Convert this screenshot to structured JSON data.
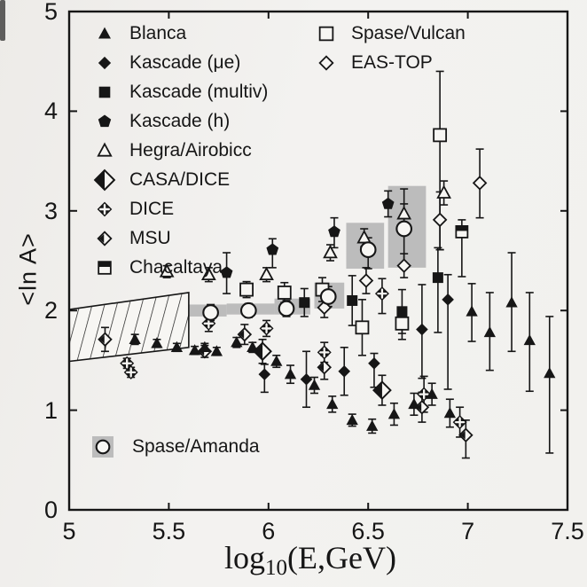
{
  "figure": {
    "ylabel": "<ln A>",
    "xlabel": {
      "prefix": "log",
      "sub": "10",
      "rest": "(E,GeV)"
    },
    "colors": {
      "ink": "#161616",
      "paper": "#f2f1ee",
      "band": "#bcbcbc",
      "face": "#f7f6f3"
    }
  },
  "axes": {
    "xlim": [
      5,
      7.5
    ],
    "ylim": [
      0,
      5
    ],
    "xticks": [
      {
        "v": 5,
        "label": "5"
      },
      {
        "v": 5.5,
        "label": "5.5"
      },
      {
        "v": 6,
        "label": "6"
      },
      {
        "v": 6.5,
        "label": "6.5"
      },
      {
        "v": 7,
        "label": "7"
      },
      {
        "v": 7.5,
        "label": "7.5"
      }
    ],
    "yticks": [
      {
        "v": 0,
        "label": "0"
      },
      {
        "v": 1,
        "label": "1"
      },
      {
        "v": 2,
        "label": "2"
      },
      {
        "v": 3,
        "label": "3"
      },
      {
        "v": 4,
        "label": "4"
      },
      {
        "v": 5,
        "label": "5"
      }
    ]
  },
  "legend": {
    "column1": [
      {
        "marker": "tri_f",
        "label": "Blanca"
      },
      {
        "marker": "dia_f",
        "label": "Kascade (μe)"
      },
      {
        "marker": "sq_f",
        "label": "Kascade (multiv)"
      },
      {
        "marker": "pent_f",
        "label": "Kascade (h)"
      },
      {
        "marker": "tri_o",
        "label": "Hegra/Airobicc"
      },
      {
        "marker": "dia_casa",
        "label": "CASA/DICE"
      },
      {
        "marker": "dia_dice",
        "label": "DICE"
      },
      {
        "marker": "dia_msu",
        "label": "MSU"
      },
      {
        "marker": "sq_half",
        "label": "Chacaltaya"
      }
    ],
    "column2": [
      {
        "marker": "sq_o",
        "label": "Spase/Vulcan"
      },
      {
        "marker": "dia_o",
        "label": "EAS-TOP"
      }
    ],
    "amanda": {
      "marker": "circ_o",
      "label": "Spase/Amanda"
    }
  },
  "chart_data": {
    "type": "scatter",
    "title": "",
    "xlabel": "log10(E,GeV)",
    "ylabel": "<ln A>",
    "xlim": [
      5,
      7.5
    ],
    "ylim": [
      0,
      5
    ],
    "note_points_format": "[x, y, err_down, err_up]",
    "series": [
      {
        "name": "CASA/DICE",
        "marker": "dia_casa",
        "points": [
          [
            5.97,
            1.59,
            0.12,
            0.12
          ],
          [
            6.57,
            1.2,
            0.15,
            0.15
          ]
        ]
      },
      {
        "name": "Spase/Vulcan",
        "marker": "sq_o",
        "points": [
          [
            5.89,
            2.21,
            0.08,
            0.08
          ],
          [
            6.08,
            2.18,
            0.1,
            0.1
          ],
          [
            6.27,
            2.21,
            0.12,
            0.12
          ],
          [
            6.47,
            1.83,
            0.28,
            0.28
          ],
          [
            6.67,
            1.87,
            0.16,
            0.16
          ],
          [
            6.86,
            3.76,
            1.15,
            0.64
          ]
        ]
      },
      {
        "name": "EAS-TOP",
        "marker": "dia_o",
        "points": [
          [
            6.28,
            2.03,
            0.1,
            0.1
          ],
          [
            6.49,
            2.3,
            0.13,
            0.13
          ],
          [
            6.68,
            2.45,
            0.12,
            0.12
          ],
          [
            6.86,
            2.91,
            0.3,
            0.28
          ],
          [
            7.06,
            3.28,
            0.35,
            0.34
          ]
        ]
      },
      {
        "name": "Chacaltaya",
        "marker": "sq_half",
        "points": [
          [
            6.97,
            2.79,
            0.45,
            0.12
          ]
        ]
      },
      {
        "name": "Kascade (multiv)",
        "marker": "sq_f",
        "points": [
          [
            6.18,
            2.08,
            0.14,
            0.14
          ],
          [
            6.42,
            2.1,
            0.25,
            0.25
          ],
          [
            6.67,
            1.99,
            0.22,
            0.22
          ],
          [
            6.85,
            2.33,
            0.55,
            0.3
          ]
        ]
      },
      {
        "name": "Kascade (h)",
        "marker": "pent_f",
        "points": [
          [
            5.79,
            2.38,
            0.21,
            0.2
          ],
          [
            6.02,
            2.61,
            0.18,
            0.11
          ],
          [
            6.33,
            2.79,
            0.16,
            0.14
          ],
          [
            6.6,
            3.07,
            0.13,
            0.13
          ]
        ]
      },
      {
        "name": "Hegra/Airobicc",
        "marker": "tri_o",
        "points": [
          [
            5.49,
            2.39,
            0.06,
            0.06
          ],
          [
            5.7,
            2.36,
            0.07,
            0.07
          ],
          [
            5.99,
            2.36,
            0.07,
            0.07
          ],
          [
            6.31,
            2.58,
            0.08,
            0.08
          ],
          [
            6.48,
            2.73,
            0.09,
            0.09
          ],
          [
            6.68,
            2.97,
            0.1,
            0.1
          ],
          [
            6.88,
            3.18,
            0.12,
            0.12
          ]
        ]
      },
      {
        "name": "DICE",
        "marker": "dia_dice",
        "points": [
          [
            5.29,
            1.47,
            0.05,
            0.05
          ],
          [
            5.31,
            1.38,
            0.05,
            0.05
          ],
          [
            5.7,
            1.87,
            0.08,
            0.08
          ],
          [
            5.99,
            1.82,
            0.08,
            0.08
          ],
          [
            6.28,
            1.58,
            0.1,
            0.1
          ],
          [
            6.57,
            2.17,
            0.2,
            0.15
          ],
          [
            6.78,
            1.16,
            0.18,
            0.18
          ],
          [
            6.96,
            0.88,
            0.15,
            0.15
          ]
        ]
      },
      {
        "name": "MSU",
        "marker": "dia_msu",
        "points": [
          [
            5.18,
            1.71,
            0.12,
            0.12
          ],
          [
            5.68,
            1.59,
            0.06,
            0.06
          ],
          [
            5.88,
            1.76,
            0.1,
            0.1
          ],
          [
            6.28,
            1.43,
            0.12,
            0.12
          ],
          [
            6.77,
            1.03,
            0.15,
            0.15
          ],
          [
            6.99,
            0.75,
            0.23,
            0.15
          ]
        ]
      },
      {
        "name": "Spase/Amanda",
        "marker": "circ_o",
        "points": [
          [
            5.71,
            1.98,
            0.08,
            0.08
          ],
          [
            5.9,
            2.0,
            0.07,
            0.07
          ],
          [
            6.09,
            2.02,
            0.08,
            0.08
          ],
          [
            6.3,
            2.14,
            0.1,
            0.1
          ],
          [
            6.5,
            2.61,
            0.19,
            0.12
          ],
          [
            6.68,
            2.82,
            0.38,
            0.4
          ]
        ]
      },
      {
        "name": "Kascade (μe)",
        "marker": "dia_f",
        "points": [
          [
            5.98,
            1.36,
            0.18,
            0.1
          ],
          [
            6.19,
            1.31,
            0.28,
            0.28
          ],
          [
            6.38,
            1.39,
            0.24,
            0.24
          ],
          [
            6.53,
            1.47,
            0.24,
            0.1
          ],
          [
            6.77,
            1.81,
            0.49,
            0.45
          ],
          [
            6.9,
            2.11,
            0.9,
            0.25
          ]
        ]
      },
      {
        "name": "Blanca",
        "marker": "tri_f",
        "points": [
          [
            5.33,
            1.71,
            0.05,
            0.05
          ],
          [
            5.44,
            1.67,
            0.04,
            0.04
          ],
          [
            5.54,
            1.63,
            0.04,
            0.04
          ],
          [
            5.63,
            1.6,
            0.04,
            0.04
          ],
          [
            5.68,
            1.63,
            0.04,
            0.04
          ],
          [
            5.74,
            1.59,
            0.04,
            0.04
          ],
          [
            5.84,
            1.68,
            0.05,
            0.05
          ],
          [
            5.92,
            1.63,
            0.05,
            0.05
          ],
          [
            6.04,
            1.49,
            0.06,
            0.06
          ],
          [
            6.11,
            1.36,
            0.09,
            0.09
          ],
          [
            6.23,
            1.25,
            0.08,
            0.08
          ],
          [
            6.32,
            1.06,
            0.08,
            0.08
          ],
          [
            6.42,
            0.9,
            0.06,
            0.06
          ],
          [
            6.52,
            0.84,
            0.07,
            0.07
          ],
          [
            6.63,
            0.96,
            0.11,
            0.11
          ],
          [
            6.73,
            1.06,
            0.11,
            0.11
          ],
          [
            6.82,
            1.16,
            0.11,
            0.11
          ],
          [
            6.91,
            0.97,
            0.14,
            0.14
          ],
          [
            7.02,
            1.99,
            0.3,
            0.28
          ],
          [
            7.11,
            1.78,
            0.38,
            0.4
          ],
          [
            7.22,
            2.08,
            0.49,
            0.5
          ],
          [
            7.31,
            1.7,
            0.51,
            0.48
          ],
          [
            7.41,
            1.37,
            0.8,
            0.57
          ]
        ]
      }
    ],
    "amanda_bands": [
      [
        5.59,
        5.79,
        1.94,
        2.06
      ],
      [
        5.79,
        6.03,
        1.96,
        2.07
      ],
      [
        6.03,
        6.21,
        1.96,
        2.12
      ],
      [
        6.23,
        6.38,
        2.02,
        2.28
      ],
      [
        6.39,
        6.58,
        2.42,
        2.88
      ],
      [
        6.6,
        6.79,
        2.43,
        3.25
      ]
    ],
    "hatched_region": [
      [
        5.0,
        2.01
      ],
      [
        5.6,
        2.18
      ],
      [
        5.6,
        1.63
      ],
      [
        5.0,
        1.49
      ]
    ]
  }
}
